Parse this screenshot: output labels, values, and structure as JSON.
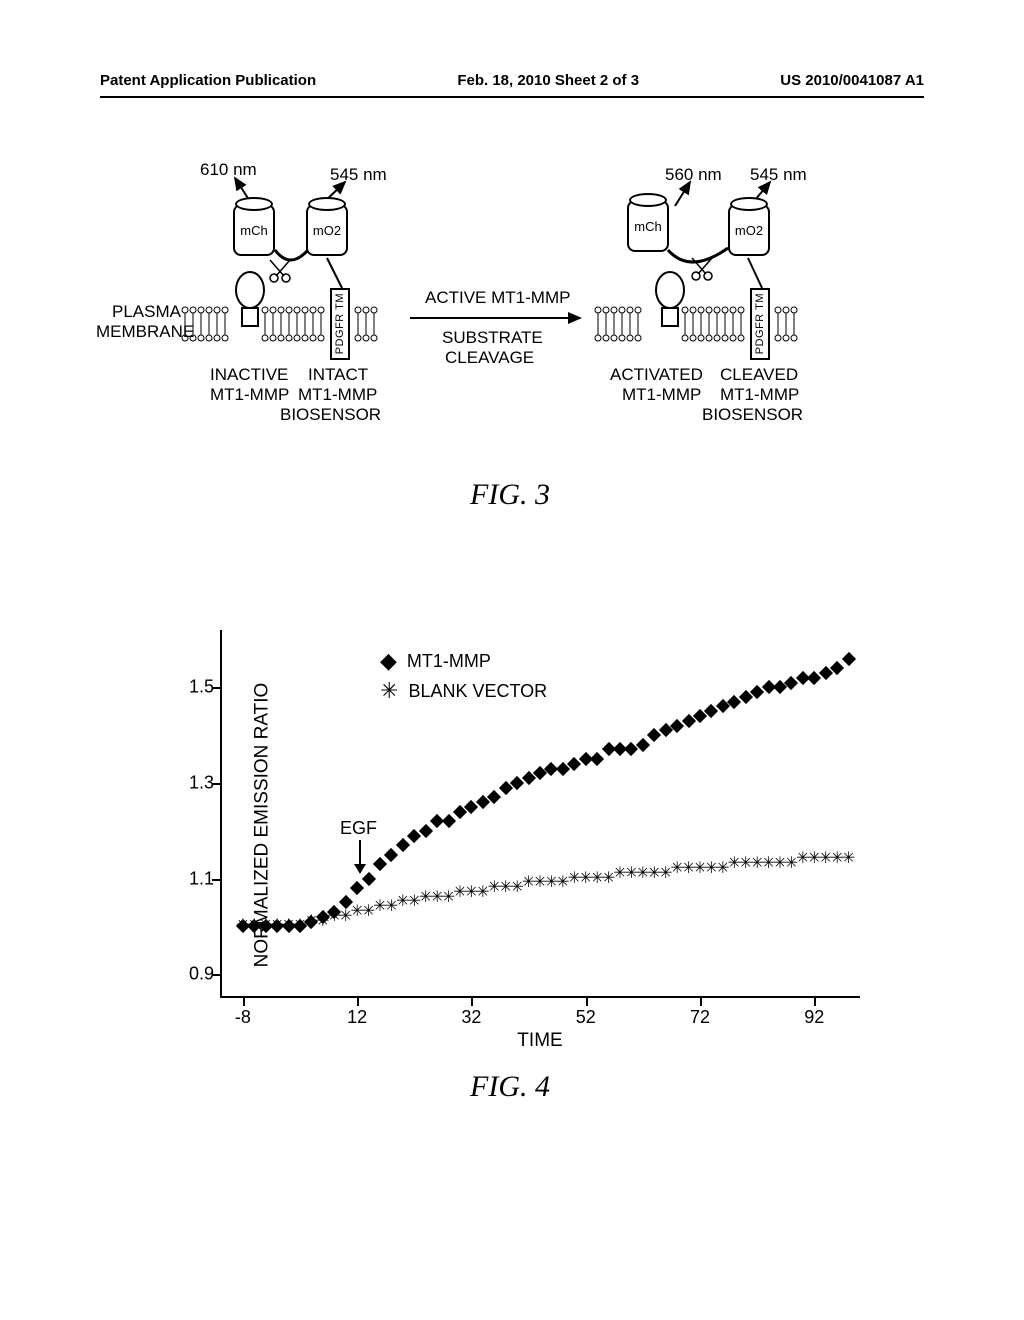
{
  "header": {
    "left": "Patent Application Publication",
    "center": "Feb. 18, 2010  Sheet 2 of 3",
    "right": "US 2010/0041087 A1"
  },
  "fig3": {
    "caption": "FIG. 3",
    "wavelengths": {
      "w610": "610 nm",
      "w545a": "545 nm",
      "w560": "560 nm",
      "w545b": "545 nm"
    },
    "proteins": {
      "mCh": "mCh",
      "mO2": "mO2",
      "pdgfr": "PDGFR TM"
    },
    "labels": {
      "plasma": "PLASMA",
      "membrane": "MEMBRANE",
      "inactive": "INACTIVE",
      "mt1": "MT1-MMP",
      "intact": "INTACT",
      "biosensor": "BIOSENSOR",
      "active": "ACTIVE MT1-MMP",
      "substrate": "SUBSTRATE",
      "cleavage": "CLEAVAGE",
      "activated": "ACTIVATED",
      "cleaved": "CLEAVED"
    }
  },
  "fig4": {
    "caption": "FIG. 4",
    "ylabel": "NORMALIZED EMISSION RATIO",
    "xlabel": "TIME",
    "yticks": [
      0.9,
      1.1,
      1.3,
      1.5
    ],
    "xticks": [
      -8,
      12,
      32,
      52,
      72,
      92
    ],
    "xlim": [
      -12,
      100
    ],
    "ylim": [
      0.85,
      1.62
    ],
    "legend": {
      "mt1": "MT1-MMP",
      "blank": "BLANK VECTOR"
    },
    "egf_label": "EGF",
    "egf_x": 4,
    "series_mt1": [
      [
        -8,
        1.0
      ],
      [
        -6,
        1.0
      ],
      [
        -4,
        1.0
      ],
      [
        -2,
        1.0
      ],
      [
        0,
        1.0
      ],
      [
        2,
        1.0
      ],
      [
        4,
        1.01
      ],
      [
        6,
        1.02
      ],
      [
        8,
        1.03
      ],
      [
        10,
        1.05
      ],
      [
        12,
        1.08
      ],
      [
        14,
        1.1
      ],
      [
        16,
        1.13
      ],
      [
        18,
        1.15
      ],
      [
        20,
        1.17
      ],
      [
        22,
        1.19
      ],
      [
        24,
        1.2
      ],
      [
        26,
        1.22
      ],
      [
        28,
        1.22
      ],
      [
        30,
        1.24
      ],
      [
        32,
        1.25
      ],
      [
        34,
        1.26
      ],
      [
        36,
        1.27
      ],
      [
        38,
        1.29
      ],
      [
        40,
        1.3
      ],
      [
        42,
        1.31
      ],
      [
        44,
        1.32
      ],
      [
        46,
        1.33
      ],
      [
        48,
        1.33
      ],
      [
        50,
        1.34
      ],
      [
        52,
        1.35
      ],
      [
        54,
        1.35
      ],
      [
        56,
        1.37
      ],
      [
        58,
        1.37
      ],
      [
        60,
        1.37
      ],
      [
        62,
        1.38
      ],
      [
        64,
        1.4
      ],
      [
        66,
        1.41
      ],
      [
        68,
        1.42
      ],
      [
        70,
        1.43
      ],
      [
        72,
        1.44
      ],
      [
        74,
        1.45
      ],
      [
        76,
        1.46
      ],
      [
        78,
        1.47
      ],
      [
        80,
        1.48
      ],
      [
        82,
        1.49
      ],
      [
        84,
        1.5
      ],
      [
        86,
        1.5
      ],
      [
        88,
        1.51
      ],
      [
        90,
        1.52
      ],
      [
        92,
        1.52
      ],
      [
        94,
        1.53
      ],
      [
        96,
        1.54
      ],
      [
        98,
        1.56
      ]
    ],
    "series_blank": [
      [
        -8,
        1.0
      ],
      [
        -6,
        1.0
      ],
      [
        -4,
        1.0
      ],
      [
        -2,
        1.0
      ],
      [
        0,
        1.0
      ],
      [
        2,
        1.0
      ],
      [
        4,
        1.01
      ],
      [
        6,
        1.01
      ],
      [
        8,
        1.02
      ],
      [
        10,
        1.02
      ],
      [
        12,
        1.03
      ],
      [
        14,
        1.03
      ],
      [
        16,
        1.04
      ],
      [
        18,
        1.04
      ],
      [
        20,
        1.05
      ],
      [
        22,
        1.05
      ],
      [
        24,
        1.06
      ],
      [
        26,
        1.06
      ],
      [
        28,
        1.06
      ],
      [
        30,
        1.07
      ],
      [
        32,
        1.07
      ],
      [
        34,
        1.07
      ],
      [
        36,
        1.08
      ],
      [
        38,
        1.08
      ],
      [
        40,
        1.08
      ],
      [
        42,
        1.09
      ],
      [
        44,
        1.09
      ],
      [
        46,
        1.09
      ],
      [
        48,
        1.09
      ],
      [
        50,
        1.1
      ],
      [
        52,
        1.1
      ],
      [
        54,
        1.1
      ],
      [
        56,
        1.1
      ],
      [
        58,
        1.11
      ],
      [
        60,
        1.11
      ],
      [
        62,
        1.11
      ],
      [
        64,
        1.11
      ],
      [
        66,
        1.11
      ],
      [
        68,
        1.12
      ],
      [
        70,
        1.12
      ],
      [
        72,
        1.12
      ],
      [
        74,
        1.12
      ],
      [
        76,
        1.12
      ],
      [
        78,
        1.13
      ],
      [
        80,
        1.13
      ],
      [
        82,
        1.13
      ],
      [
        84,
        1.13
      ],
      [
        86,
        1.13
      ],
      [
        88,
        1.13
      ],
      [
        90,
        1.14
      ],
      [
        92,
        1.14
      ],
      [
        94,
        1.14
      ],
      [
        96,
        1.14
      ],
      [
        98,
        1.14
      ]
    ],
    "colors": {
      "marker": "#000000",
      "axis": "#000000",
      "background": "#ffffff"
    },
    "marker_mt1": "diamond",
    "marker_blank": "asterisk"
  }
}
